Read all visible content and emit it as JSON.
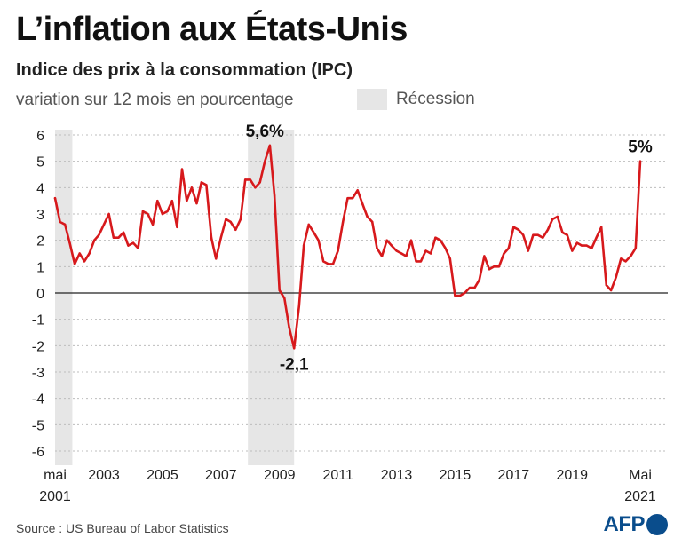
{
  "title": "L’inflation aux États-Unis",
  "subtitle": "Indice des prix à la consommation (IPC)",
  "unit_label": "variation sur 12 mois en pourcentage",
  "legend_label": "Récession",
  "source": "Source : US Bureau of Labor Statistics",
  "logo_text": "AFP",
  "colors": {
    "line": "#d7191c",
    "recession": "#e6e6e6",
    "zero_line": "#222222",
    "gridline": "#bdbdbd"
  },
  "chart_data": {
    "type": "line",
    "title": "L’inflation aux États-Unis",
    "subtitle": "Indice des prix à la consommation (IPC)",
    "ylabel": "variation sur 12 mois en pourcentage",
    "ylim": [
      -6,
      6
    ],
    "yticks": [
      6,
      5,
      4,
      3,
      2,
      1,
      0,
      -1,
      -2,
      -3,
      -4,
      -5,
      -6
    ],
    "xlim": [
      2001.33,
      2021.42
    ],
    "x_tick_labels": [
      {
        "x": 2001.33,
        "label": "mai",
        "sub": "2001"
      },
      {
        "x": 2003,
        "label": "2003"
      },
      {
        "x": 2005,
        "label": "2005"
      },
      {
        "x": 2007,
        "label": "2007"
      },
      {
        "x": 2009,
        "label": "2009"
      },
      {
        "x": 2011,
        "label": "2011"
      },
      {
        "x": 2013,
        "label": "2013"
      },
      {
        "x": 2015,
        "label": "2015"
      },
      {
        "x": 2017,
        "label": "2017"
      },
      {
        "x": 2019,
        "label": "2019"
      },
      {
        "x": 2021.33,
        "label": "Mai",
        "sub": "2021"
      }
    ],
    "grid": "dashed horizontal",
    "recessions": [
      [
        2001.25,
        2001.92
      ],
      [
        2007.92,
        2009.5
      ]
    ],
    "annotations": [
      {
        "x": 2008.5,
        "y": 5.6,
        "text": "5,6%"
      },
      {
        "x": 2009.5,
        "y": -2.1,
        "text": "-2,1"
      },
      {
        "x": 2021.33,
        "y": 5.0,
        "text": "5%"
      }
    ],
    "series": [
      {
        "x": [
          2001.33,
          2001.5,
          2001.67,
          2001.83,
          2002.0,
          2002.17,
          2002.33,
          2002.5,
          2002.67,
          2002.83,
          2003.0,
          2003.17,
          2003.33,
          2003.5,
          2003.67,
          2003.83,
          2004.0,
          2004.17,
          2004.33,
          2004.5,
          2004.67,
          2004.83,
          2005.0,
          2005.17,
          2005.33,
          2005.5,
          2005.67,
          2005.83,
          2006.0,
          2006.17,
          2006.33,
          2006.5,
          2006.67,
          2006.83,
          2007.0,
          2007.17,
          2007.33,
          2007.5,
          2007.67,
          2007.83,
          2008.0,
          2008.17,
          2008.33,
          2008.5,
          2008.67,
          2008.83,
          2009.0,
          2009.17,
          2009.33,
          2009.5,
          2009.67,
          2009.83,
          2010.0,
          2010.17,
          2010.33,
          2010.5,
          2010.67,
          2010.83,
          2011.0,
          2011.17,
          2011.33,
          2011.5,
          2011.67,
          2011.83,
          2012.0,
          2012.17,
          2012.33,
          2012.5,
          2012.67,
          2012.83,
          2013.0,
          2013.17,
          2013.33,
          2013.5,
          2013.67,
          2013.83,
          2014.0,
          2014.17,
          2014.33,
          2014.5,
          2014.67,
          2014.83,
          2015.0,
          2015.17,
          2015.33,
          2015.5,
          2015.67,
          2015.83,
          2016.0,
          2016.17,
          2016.33,
          2016.5,
          2016.67,
          2016.83,
          2017.0,
          2017.17,
          2017.33,
          2017.5,
          2017.67,
          2017.83,
          2018.0,
          2018.17,
          2018.33,
          2018.5,
          2018.67,
          2018.83,
          2019.0,
          2019.17,
          2019.33,
          2019.5,
          2019.67,
          2019.83,
          2020.0,
          2020.17,
          2020.33,
          2020.5,
          2020.67,
          2020.83,
          2021.0,
          2021.17,
          2021.33
        ],
        "values": [
          3.6,
          2.7,
          2.6,
          1.9,
          1.1,
          1.5,
          1.2,
          1.5,
          2.0,
          2.2,
          2.6,
          3.0,
          2.1,
          2.1,
          2.3,
          1.8,
          1.9,
          1.7,
          3.1,
          3.0,
          2.6,
          3.5,
          3.0,
          3.1,
          3.5,
          2.5,
          4.7,
          3.5,
          4.0,
          3.4,
          4.2,
          4.1,
          2.1,
          1.3,
          2.1,
          2.8,
          2.7,
          2.4,
          2.8,
          4.3,
          4.3,
          4.0,
          4.2,
          5.0,
          5.6,
          3.7,
          0.1,
          -0.2,
          -1.3,
          -2.1,
          -0.5,
          1.8,
          2.6,
          2.3,
          2.0,
          1.2,
          1.1,
          1.1,
          1.6,
          2.7,
          3.6,
          3.6,
          3.9,
          3.4,
          2.9,
          2.7,
          1.7,
          1.4,
          2.0,
          1.8,
          1.6,
          1.5,
          1.4,
          2.0,
          1.2,
          1.2,
          1.6,
          1.5,
          2.1,
          2.0,
          1.7,
          1.3,
          -0.1,
          -0.1,
          0.0,
          0.2,
          0.2,
          0.5,
          1.4,
          0.9,
          1.0,
          1.0,
          1.5,
          1.7,
          2.5,
          2.4,
          2.2,
          1.6,
          2.2,
          2.2,
          2.1,
          2.4,
          2.8,
          2.9,
          2.3,
          2.2,
          1.6,
          1.9,
          1.8,
          1.8,
          1.7,
          2.1,
          2.5,
          0.3,
          0.1,
          0.6,
          1.3,
          1.2,
          1.4,
          1.7,
          5.0
        ]
      }
    ]
  }
}
